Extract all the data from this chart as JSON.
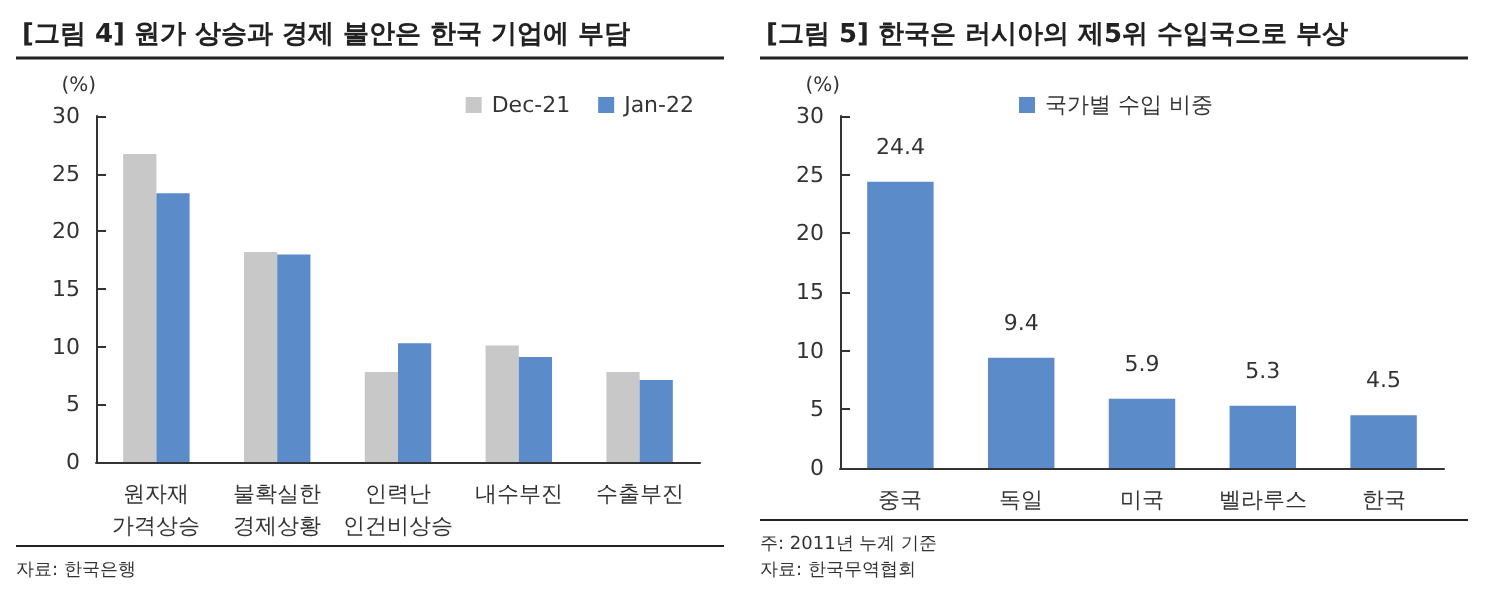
{
  "chart_data": [
    {
      "type": "bar",
      "title": "[그림 4] 원가 상승과 경제 불안은 한국 기업에 부담",
      "ylabel": "(%)",
      "categories": [
        "원자재\n가격상승",
        "불확실한\n경제상황",
        "인력난\n인건비상승",
        "내수부진",
        "수출부진"
      ],
      "series": [
        {
          "name": "Dec-21",
          "color": "#c8c8c8",
          "values": [
            26.7,
            18.2,
            7.8,
            10.1,
            7.8
          ]
        },
        {
          "name": "Jan-22",
          "color": "#5b8bc9",
          "values": [
            23.3,
            18.0,
            10.3,
            9.1,
            7.1
          ]
        }
      ],
      "ylim": [
        0,
        30
      ],
      "yticks": [
        0,
        5,
        10,
        15,
        20,
        25,
        30
      ],
      "grid": false,
      "legend": "top right",
      "annotations": [
        "자료: 한국은행"
      ]
    },
    {
      "type": "bar",
      "title": "[그림 5] 한국은 러시아의 제5위 수입국으로 부상",
      "ylabel": "(%)",
      "categories": [
        "중국",
        "독일",
        "미국",
        "벨라루스",
        "한국"
      ],
      "series": [
        {
          "name": "국가별 수입 비중",
          "color": "#5b8bc9",
          "values": [
            24.4,
            9.4,
            5.9,
            5.3,
            4.5
          ]
        }
      ],
      "ylim": [
        0,
        30
      ],
      "yticks": [
        0,
        5,
        10,
        15,
        20,
        25,
        30
      ],
      "grid": false,
      "legend": "top",
      "data_labels": true,
      "annotations": [
        "주: 2011년 누계 기준",
        "자료: 한국무역협회"
      ]
    }
  ]
}
